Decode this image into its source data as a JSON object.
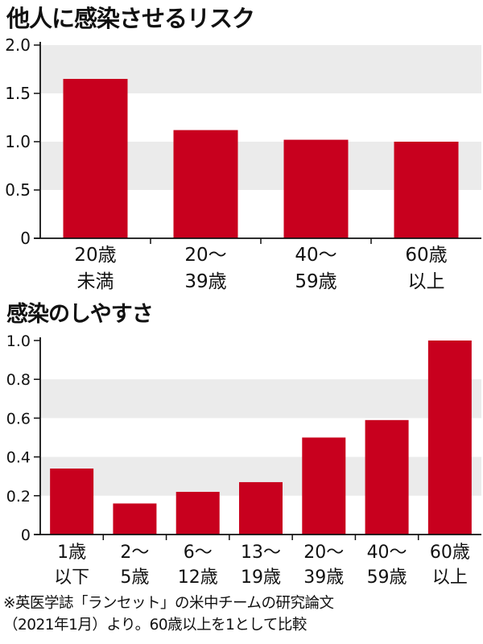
{
  "colors": {
    "bar": "#c8001e",
    "band": "#ebebeb",
    "axis": "#111111",
    "text": "#111111"
  },
  "footnote": {
    "line1": "※英医学誌「ランセット」の米中チームの研究論文",
    "line2": "（2021年1月）より。60歳以上を1として比較"
  },
  "chart_data": [
    {
      "type": "bar",
      "title": "他人に感染させるリスク",
      "categories": [
        [
          "20歳",
          "未満"
        ],
        [
          "20〜",
          "39歳"
        ],
        [
          "40〜",
          "59歳"
        ],
        [
          "60歳",
          "以上"
        ]
      ],
      "values": [
        1.65,
        1.12,
        1.02,
        1.0
      ],
      "yticks": [
        "0",
        "0.5",
        "1.0",
        "1.5",
        "2.0"
      ],
      "ylim": [
        0,
        2.0
      ],
      "bands": [
        [
          0.5,
          1.0
        ],
        [
          1.5,
          2.0
        ]
      ],
      "xlabel": "",
      "ylabel": ""
    },
    {
      "type": "bar",
      "title": "感染のしやすさ",
      "categories": [
        [
          "1歳",
          "以下"
        ],
        [
          "2〜",
          "5歳"
        ],
        [
          "6〜",
          "12歳"
        ],
        [
          "13〜",
          "19歳"
        ],
        [
          "20〜",
          "39歳"
        ],
        [
          "40〜",
          "59歳"
        ],
        [
          "60歳",
          "以上"
        ]
      ],
      "values": [
        0.34,
        0.16,
        0.22,
        0.27,
        0.5,
        0.59,
        1.0
      ],
      "yticks": [
        "0",
        "0.2",
        "0.4",
        "0.6",
        "0.8",
        "1.0"
      ],
      "ylim": [
        0,
        1.0
      ],
      "bands": [
        [
          0.2,
          0.4
        ],
        [
          0.6,
          0.8
        ]
      ],
      "xlabel": "",
      "ylabel": ""
    }
  ]
}
